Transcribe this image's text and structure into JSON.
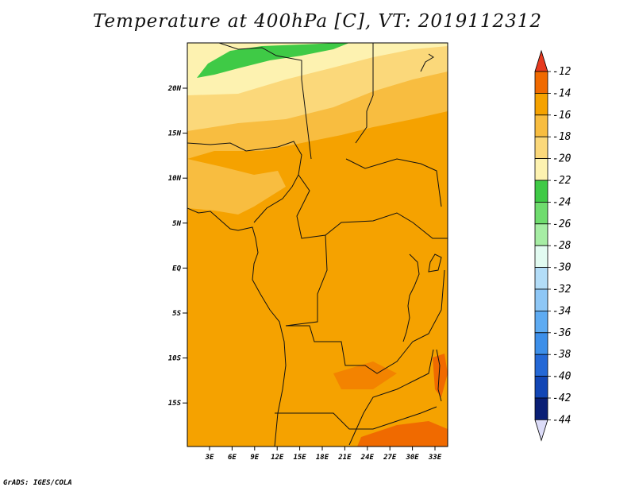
{
  "title": "Temperature at 400hPa [C], VT: 2019112312",
  "footer": "GrADS: IGES/COLA",
  "map": {
    "lat_ticks": [
      "20N",
      "15N",
      "10N",
      "5N",
      "EQ",
      "5S",
      "10S",
      "15S"
    ],
    "lon_ticks": [
      "3E",
      "6E",
      "9E",
      "12E",
      "15E",
      "18E",
      "21E",
      "24E",
      "27E",
      "30E",
      "33E"
    ]
  },
  "colorbar": {
    "labels": [
      "-12",
      "-14",
      "-16",
      "-18",
      "-20",
      "-22",
      "-24",
      "-26",
      "-28",
      "-30",
      "-32",
      "-34",
      "-36",
      "-38",
      "-40",
      "-42",
      "-44"
    ],
    "colors": [
      "#e63a1f",
      "#f06a00",
      "#f5a200",
      "#f8bd40",
      "#fbd87a",
      "#fdf2b0",
      "#3fca46",
      "#6fdc6e",
      "#a6eda4",
      "#e2fbf1",
      "#b3ddf8",
      "#8ec7f6",
      "#5eabf2",
      "#3d8fe9",
      "#2468d6",
      "#1246b5",
      "#0a1f75",
      "#dcdcf8"
    ]
  }
}
